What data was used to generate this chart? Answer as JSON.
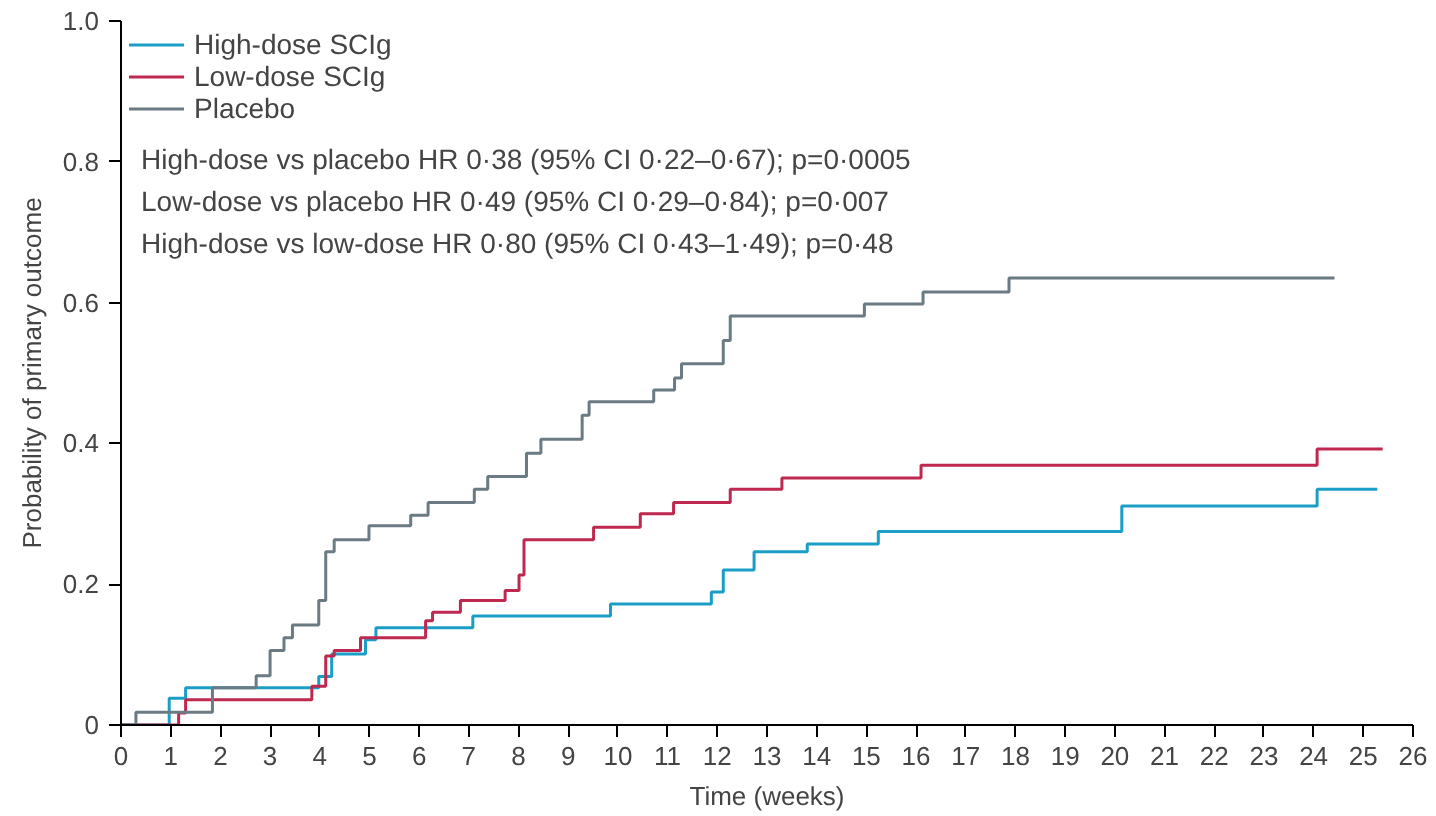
{
  "chart_data": {
    "type": "step",
    "xlabel": "Time (weeks)",
    "ylabel": "Probability of primary outcome",
    "xlim": [
      0,
      26
    ],
    "xticks": [
      0,
      1,
      2,
      3,
      4,
      5,
      6,
      7,
      8,
      9,
      10,
      11,
      12,
      13,
      14,
      15,
      16,
      17,
      18,
      19,
      20,
      21,
      22,
      23,
      24,
      25,
      26
    ],
    "ylim": [
      0,
      1.0
    ],
    "yticks": [
      0,
      0.2,
      0.4,
      0.6,
      0.8,
      {
        "value": 1.0,
        "label": "1.0"
      }
    ],
    "grid": false,
    "legend": "top left",
    "series": [
      {
        "name": "High-dose SCIg",
        "color": "#1a9ec6",
        "x": [
          0,
          0.97,
          1.3,
          3.98,
          4.24,
          4.92,
          5.13,
          7.08,
          9.85,
          11.88,
          12.12,
          12.74,
          13.81,
          15.24,
          20.14,
          24.07,
          25.28
        ],
        "values": [
          0,
          0.038,
          0.053,
          0.069,
          0.101,
          0.121,
          0.138,
          0.155,
          0.172,
          0.189,
          0.22,
          0.246,
          0.257,
          0.275,
          0.311,
          0.335,
          0.335
        ]
      },
      {
        "name": "Low-dose SCIg",
        "color": "#c0294f",
        "x": [
          0,
          1.16,
          1.3,
          3.84,
          4.12,
          4.29,
          4.82,
          6.13,
          6.27,
          6.83,
          7.73,
          8.01,
          8.11,
          9.51,
          10.45,
          11.12,
          12.26,
          13.3,
          16.1,
          24.07,
          25.39
        ],
        "values": [
          0,
          0.017,
          0.036,
          0.055,
          0.098,
          0.106,
          0.124,
          0.148,
          0.16,
          0.177,
          0.191,
          0.213,
          0.263,
          0.281,
          0.3,
          0.316,
          0.335,
          0.351,
          0.369,
          0.392,
          0.392
        ]
      },
      {
        "name": "Placebo",
        "color": "#6b7b83",
        "x": [
          0,
          0.3,
          1.84,
          2.72,
          3.0,
          3.28,
          3.45,
          3.98,
          4.12,
          4.29,
          4.99,
          5.83,
          6.18,
          7.11,
          7.38,
          8.16,
          8.45,
          9.28,
          9.42,
          10.72,
          11.14,
          11.28,
          12.12,
          12.26,
          14.96,
          16.14,
          17.87,
          24.42
        ],
        "values": [
          0,
          0.018,
          0.053,
          0.07,
          0.106,
          0.124,
          0.142,
          0.177,
          0.246,
          0.263,
          0.283,
          0.298,
          0.316,
          0.335,
          0.353,
          0.386,
          0.406,
          0.44,
          0.459,
          0.476,
          0.493,
          0.513,
          0.546,
          0.581,
          0.598,
          0.615,
          0.635,
          0.635
        ]
      }
    ],
    "annotations": [
      "High-dose vs placebo HR 0·38 (95% CI 0·22–0·67); p=0·0005",
      "Low-dose vs placebo HR 0·49 (95% CI 0·29–0·84); p=0·007",
      "High-dose vs low-dose HR 0·80 (95% CI 0·43–1·49); p=0·48"
    ]
  }
}
